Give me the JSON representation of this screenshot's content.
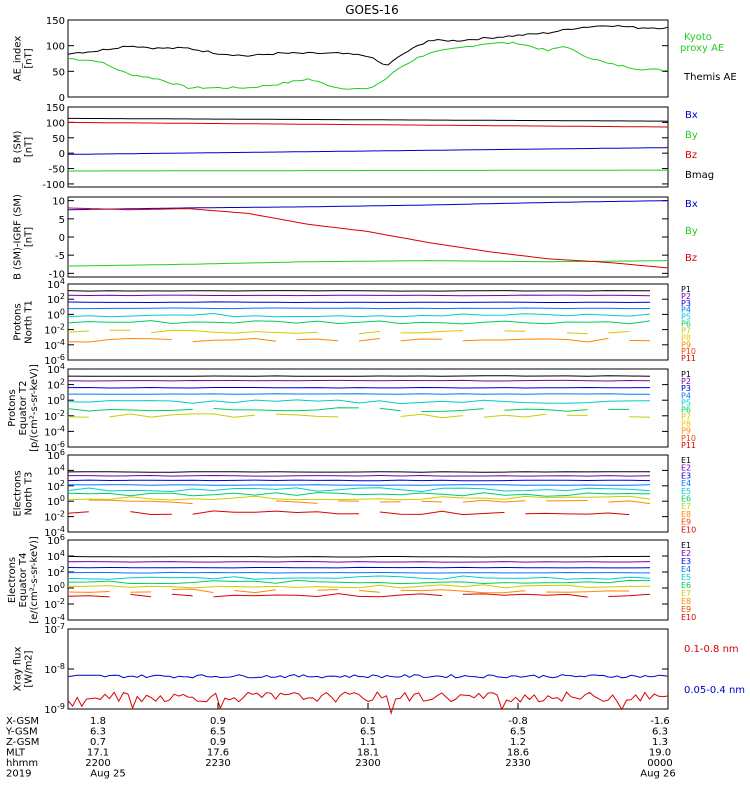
{
  "title": "GOES-16",
  "colors": {
    "black": "#000000",
    "green": "#22cc22",
    "red": "#dd0000",
    "blue": "#0000cc",
    "p1": "#000000",
    "p2": "#7700aa",
    "p3": "#0000dd",
    "p4": "#0077ff",
    "p5": "#00cccc",
    "p6": "#00cc66",
    "p7": "#cccc00",
    "p8": "#eecc00",
    "p9": "#ff8800",
    "p10": "#ee4400",
    "p11": "#dd0000"
  },
  "chart_data": [
    {
      "type": "line",
      "ylabel": [
        "AE_index",
        "[nT]"
      ],
      "ylim": [
        0,
        150
      ],
      "yticks": [
        "0",
        "50",
        "100",
        "150"
      ],
      "series": [
        {
          "name": "Kyoto proxy AE",
          "color": "#22cc22",
          "x": [
            0,
            0.05,
            0.08,
            0.1,
            0.15,
            0.18,
            0.2,
            0.25,
            0.3,
            0.35,
            0.4,
            0.45,
            0.5,
            0.53,
            0.55,
            0.58,
            0.6,
            0.65,
            0.7,
            0.75,
            0.8,
            0.83,
            0.85,
            0.9,
            0.95,
            1.0
          ],
          "y": [
            75,
            70,
            55,
            45,
            35,
            25,
            18,
            18,
            18,
            25,
            35,
            18,
            15,
            35,
            55,
            75,
            85,
            95,
            105,
            105,
            90,
            100,
            85,
            65,
            55,
            52
          ]
        },
        {
          "name": "Themis AE",
          "color": "#000000",
          "x": [
            0,
            0.05,
            0.1,
            0.15,
            0.2,
            0.25,
            0.3,
            0.35,
            0.4,
            0.45,
            0.5,
            0.53,
            0.56,
            0.6,
            0.65,
            0.7,
            0.75,
            0.8,
            0.85,
            0.9,
            0.95,
            1.0
          ],
          "y": [
            85,
            90,
            100,
            95,
            95,
            85,
            80,
            85,
            85,
            85,
            80,
            60,
            85,
            110,
            110,
            115,
            120,
            125,
            135,
            140,
            135,
            135
          ]
        }
      ]
    },
    {
      "type": "line",
      "ylabel": [
        "B (SM)",
        "[nT]"
      ],
      "ylim": [
        -110,
        150
      ],
      "yticks": [
        "-100",
        "-50",
        "0",
        "50",
        "100",
        "150"
      ],
      "series": [
        {
          "name": "Bx",
          "color": "#0000cc",
          "x": [
            0,
            1
          ],
          "y": [
            -4,
            18
          ]
        },
        {
          "name": "By",
          "color": "#22cc22",
          "x": [
            0,
            1
          ],
          "y": [
            -58,
            -55
          ]
        },
        {
          "name": "Bz",
          "color": "#dd0000",
          "x": [
            0,
            1
          ],
          "y": [
            100,
            85
          ]
        },
        {
          "name": "Bmag",
          "color": "#000000",
          "x": [
            0,
            1
          ],
          "y": [
            113,
            104
          ]
        }
      ]
    },
    {
      "type": "line",
      "ylabel": [
        "B (SM)-IGRF (SM)",
        "[nT]"
      ],
      "ylim": [
        -11,
        11
      ],
      "yticks": [
        "-10",
        "-5",
        "0",
        "5",
        "10"
      ],
      "series": [
        {
          "name": "Bx",
          "color": "#0000cc",
          "x": [
            0,
            0.2,
            0.4,
            0.6,
            0.8,
            1.0
          ],
          "y": [
            7.5,
            8,
            8.3,
            8.8,
            9.5,
            10
          ]
        },
        {
          "name": "By",
          "color": "#22cc22",
          "x": [
            0,
            0.2,
            0.4,
            0.6,
            0.8,
            1.0
          ],
          "y": [
            -8,
            -7.5,
            -6.8,
            -6.5,
            -6.8,
            -6.5
          ]
        },
        {
          "name": "Bz",
          "color": "#dd0000",
          "x": [
            0,
            0.1,
            0.2,
            0.3,
            0.4,
            0.5,
            0.6,
            0.7,
            0.8,
            0.9,
            1.0
          ],
          "y": [
            8,
            7.5,
            7.8,
            6.5,
            3.5,
            1.5,
            -1.5,
            -4,
            -6,
            -7,
            -8.5
          ]
        }
      ]
    },
    {
      "type": "line",
      "ylabel": [
        "Protons",
        "North T1"
      ],
      "ylim": [
        -6,
        4
      ],
      "yticks": [
        "10^4",
        "10^2",
        "10^0",
        "10^-2",
        "10^-4",
        "10^-6"
      ],
      "legend": [
        "P1",
        "P2",
        "P3",
        "P4",
        "P5",
        "P6",
        "P7",
        "P8",
        "P9",
        "P10",
        "P11"
      ],
      "levels": [
        3.1,
        2.5,
        1.6,
        0.8,
        -0.1,
        -1.0,
        -2.3,
        -3.4
      ]
    },
    {
      "type": "line",
      "ylabel": [
        "Protons",
        "Equator T2",
        "[p/(cm²-s-sr-keV)]"
      ],
      "ylim": [
        -6,
        4
      ],
      "yticks": [
        "10^4",
        "10^2",
        "10^0",
        "10^-2",
        "10^-4",
        "10^-6"
      ],
      "legend": [
        "P1",
        "P2",
        "P3",
        "P4",
        "P5",
        "P6",
        "P7",
        "P8",
        "P9",
        "P10",
        "P11"
      ],
      "levels": [
        3.1,
        2.5,
        1.6,
        0.8,
        -0.2,
        -1.2,
        -2.0
      ]
    },
    {
      "type": "line",
      "ylabel": [
        "Electrons",
        "North T3"
      ],
      "ylim": [
        -4,
        6
      ],
      "yticks": [
        "10^6",
        "10^4",
        "10^2",
        "10^0",
        "10^-2",
        "10^-4"
      ],
      "legend": [
        "E1",
        "E2",
        "E3",
        "E4",
        "E5",
        "E6",
        "E7",
        "E8",
        "E9",
        "E10"
      ],
      "levels": [
        3.8,
        3.3,
        2.7,
        2.1,
        1.5,
        0.9,
        0.4,
        -0.1,
        -1.5
      ]
    },
    {
      "type": "line",
      "ylabel": [
        "Electrons",
        "Equator T4",
        "[e/(cm²-s-sr-keV)]"
      ],
      "ylim": [
        -5,
        6
      ],
      "yticks": [
        "10^6",
        "10^4",
        "10^2",
        "10^0",
        "10^-2",
        "10^-4"
      ],
      "legend": [
        "E1",
        "E2",
        "E3",
        "E4",
        "E5",
        "E6",
        "E7",
        "E8",
        "E9",
        "E10"
      ],
      "levels": [
        3.7,
        3.0,
        2.2,
        1.5,
        0.8,
        0.2,
        -0.4,
        -1.0,
        -1.6
      ]
    },
    {
      "type": "line",
      "ylabel": [
        "Xray flux",
        "[W/m2]"
      ],
      "ylim": [
        -9,
        -7
      ],
      "yticks": [
        "10^-7",
        "10^-8",
        "10^-9"
      ],
      "series": [
        {
          "name": "0.1-0.8 nm",
          "color": "#dd0000",
          "level": -8.7
        },
        {
          "name": "0.05-0.4 nm",
          "color": "#0000cc",
          "level": -8.18
        }
      ]
    }
  ],
  "xaxis": {
    "rows": [
      {
        "label": "X-GSM",
        "values": [
          "1.8",
          "0.9",
          "0.1",
          "-0.8",
          "-1.6"
        ]
      },
      {
        "label": "Y-GSM",
        "values": [
          "6.3",
          "6.5",
          "6.5",
          "6.5",
          "6.3"
        ]
      },
      {
        "label": "Z-GSM",
        "values": [
          "0.7",
          "0.9",
          "1.1",
          "1.2",
          "1.3"
        ]
      },
      {
        "label": "MLT",
        "values": [
          "17.1",
          "17.6",
          "18.1",
          "18.6",
          "19.0"
        ]
      },
      {
        "label": "hhmm",
        "values": [
          "2200",
          "2230",
          "2300",
          "2330",
          "0000"
        ]
      },
      {
        "label": "2019",
        "values": [
          "Aug 25",
          "",
          "",
          "",
          "Aug 26"
        ]
      }
    ]
  },
  "side_labels": {
    "ae": [
      "Kyoto",
      "proxy AE",
      "Themis AE"
    ],
    "b": [
      "Bx",
      "By",
      "Bz",
      "Bmag"
    ],
    "db": [
      "Bx",
      "By",
      "Bz"
    ],
    "xray": [
      "0.1-0.8 nm",
      "0.05-0.4 nm"
    ]
  }
}
